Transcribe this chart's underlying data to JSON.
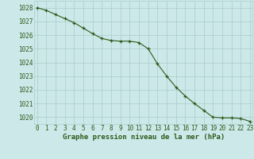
{
  "x": [
    0,
    1,
    2,
    3,
    4,
    5,
    6,
    7,
    8,
    9,
    10,
    11,
    12,
    13,
    14,
    15,
    16,
    17,
    18,
    19,
    20,
    21,
    22,
    23
  ],
  "y": [
    1028.0,
    1027.8,
    1027.5,
    1027.2,
    1026.9,
    1026.5,
    1026.1,
    1025.75,
    1025.6,
    1025.55,
    1025.55,
    1025.45,
    1025.0,
    1023.9,
    1023.0,
    1022.2,
    1021.55,
    1021.0,
    1020.5,
    1020.0,
    1019.95,
    1019.95,
    1019.9,
    1019.7
  ],
  "line_color": "#2d5a1b",
  "marker": "+",
  "marker_size": 3,
  "linewidth": 0.8,
  "bg_color": "#cce8e8",
  "grid_color": "#aacccc",
  "xlabel": "Graphe pression niveau de la mer (hPa)",
  "xlabel_fontsize": 6.5,
  "tick_fontsize": 5.5,
  "ylim": [
    1019.5,
    1028.5
  ],
  "yticks": [
    1020,
    1021,
    1022,
    1023,
    1024,
    1025,
    1026,
    1027,
    1028
  ],
  "xticks": [
    0,
    1,
    2,
    3,
    4,
    5,
    6,
    7,
    8,
    9,
    10,
    11,
    12,
    13,
    14,
    15,
    16,
    17,
    18,
    19,
    20,
    21,
    22,
    23
  ],
  "xlim": [
    -0.3,
    23.3
  ]
}
